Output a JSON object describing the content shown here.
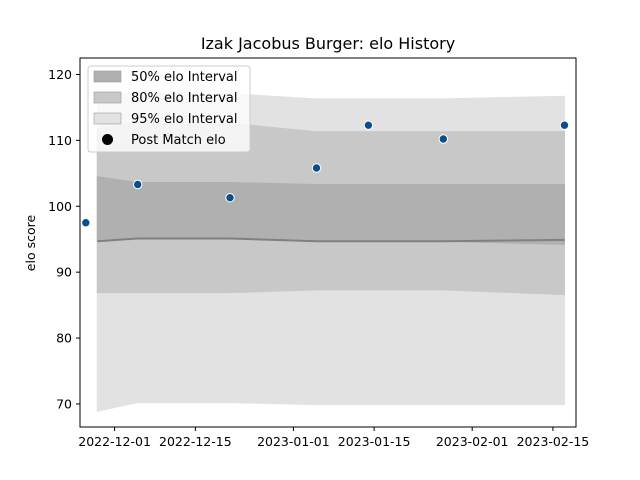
{
  "chart_data": {
    "type": "area",
    "title": "Izak Jacobus Burger: elo History",
    "xlabel": "",
    "ylabel": "elo score",
    "ylim": [
      66.5,
      122.5
    ],
    "xlim": [
      "2022-11-25",
      "2023-02-19"
    ],
    "grid": false,
    "legend_position": "top-left",
    "x_ticks": [
      "2022-12-01",
      "2022-12-15",
      "2023-01-01",
      "2023-01-15",
      "2023-02-01",
      "2023-02-15"
    ],
    "y_ticks": [
      70,
      80,
      90,
      100,
      110,
      120
    ],
    "dates": [
      "2022-11-28",
      "2022-12-05",
      "2022-12-21",
      "2023-01-05",
      "2023-01-14",
      "2023-01-27",
      "2023-02-17"
    ],
    "mean": [
      94.7,
      95.1,
      95.1,
      94.7,
      94.7,
      94.7,
      94.9
    ],
    "bands": [
      {
        "name": "50% elo Interval",
        "color": "#b0b0b0",
        "lower": [
          94.7,
          95.1,
          95.1,
          94.7,
          94.7,
          94.7,
          94.2
        ],
        "upper": [
          104.5,
          103.6,
          103.6,
          103.3,
          103.3,
          103.3,
          103.3
        ]
      },
      {
        "name": "80% elo Interval",
        "color": "#c8c8c8",
        "lower": [
          86.9,
          86.9,
          86.9,
          87.3,
          87.3,
          87.3,
          86.6
        ],
        "upper": [
          111.8,
          112.6,
          112.6,
          111.3,
          111.3,
          111.3,
          111.3
        ]
      },
      {
        "name": "95% elo Interval",
        "color": "#e2e2e2",
        "lower": [
          76.4,
          77.2,
          77.2,
          76.8,
          76.8,
          76.8,
          76.0
        ],
        "upper": [
          117.1,
          117.1,
          117.1,
          116.3,
          116.3,
          116.3,
          116.7
        ]
      },
      {
        "name": "95% elo Interval",
        "color": "#e2e2e2",
        "lower": [
          68.9,
          70.2,
          70.2,
          69.9,
          69.9,
          69.9,
          69.9
        ],
        "upper": [
          76.4,
          77.2,
          77.2,
          76.8,
          76.8,
          76.8,
          76.0
        ]
      }
    ],
    "series": [
      {
        "name": "Post Match elo",
        "color": "#0b4f8a",
        "x": [
          "2022-11-26",
          "2022-12-05",
          "2022-12-21",
          "2023-01-05",
          "2023-01-14",
          "2023-01-27",
          "2023-02-17"
        ],
        "values": [
          97.5,
          103.3,
          101.3,
          105.8,
          112.3,
          110.2,
          112.3
        ]
      }
    ],
    "legend": [
      "50% elo Interval",
      "80% elo Interval",
      "95% elo Interval",
      "Post Match elo"
    ]
  }
}
